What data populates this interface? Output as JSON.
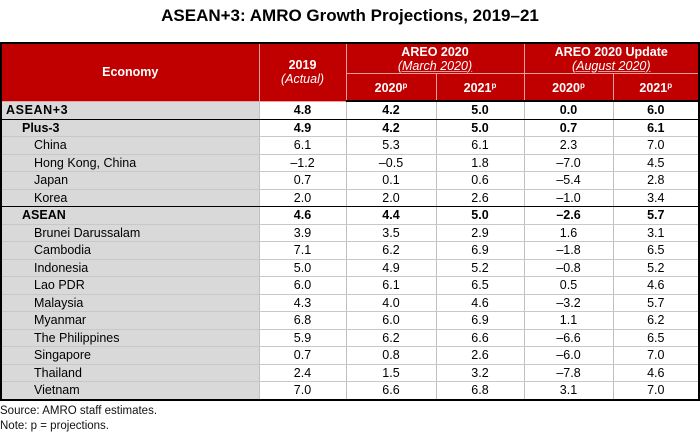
{
  "title": "ASEAN+3: AMRO Growth Projections, 2019–21",
  "header": {
    "economy": "Economy",
    "actual_year": "2019",
    "actual_sub": "(Actual)",
    "areo_title": "AREO 2020",
    "areo_sub": "(March 2020)",
    "update_title": "AREO 2020 Update",
    "update_sub": "(August 2020)",
    "y2020": "2020",
    "y2021": "2021",
    "proj_marker": "p"
  },
  "rows": [
    {
      "name": "ASEAN+3",
      "level": 0,
      "values": [
        "4.8",
        "4.2",
        "5.0",
        "0.0",
        "6.0"
      ]
    },
    {
      "name": "Plus-3",
      "level": 1,
      "values": [
        "4.9",
        "4.2",
        "5.0",
        "0.7",
        "6.1"
      ]
    },
    {
      "name": "China",
      "level": 2,
      "values": [
        "6.1",
        "5.3",
        "6.1",
        "2.3",
        "7.0"
      ]
    },
    {
      "name": "Hong Kong, China",
      "level": 2,
      "values": [
        "–1.2",
        "–0.5",
        "1.8",
        "–7.0",
        "4.5"
      ]
    },
    {
      "name": "Japan",
      "level": 2,
      "values": [
        "0.7",
        "0.1",
        "0.6",
        "–5.4",
        "2.8"
      ]
    },
    {
      "name": "Korea",
      "level": 2,
      "values": [
        "2.0",
        "2.0",
        "2.6",
        "–1.0",
        "3.4"
      ]
    },
    {
      "name": "ASEAN",
      "level": 1,
      "values": [
        "4.6",
        "4.4",
        "5.0",
        "–2.6",
        "5.7"
      ]
    },
    {
      "name": "Brunei Darussalam",
      "level": 2,
      "values": [
        "3.9",
        "3.5",
        "2.9",
        "1.6",
        "3.1"
      ]
    },
    {
      "name": "Cambodia",
      "level": 2,
      "values": [
        "7.1",
        "6.2",
        "6.9",
        "–1.8",
        "6.5"
      ]
    },
    {
      "name": "Indonesia",
      "level": 2,
      "values": [
        "5.0",
        "4.9",
        "5.2",
        "–0.8",
        "5.2"
      ]
    },
    {
      "name": "Lao PDR",
      "level": 2,
      "values": [
        "6.0",
        "6.1",
        "6.5",
        "0.5",
        "4.6"
      ]
    },
    {
      "name": "Malaysia",
      "level": 2,
      "values": [
        "4.3",
        "4.0",
        "4.6",
        "–3.2",
        "5.7"
      ]
    },
    {
      "name": "Myanmar",
      "level": 2,
      "values": [
        "6.8",
        "6.0",
        "6.9",
        "1.1",
        "6.2"
      ]
    },
    {
      "name": "The Philippines",
      "level": 2,
      "values": [
        "5.9",
        "6.2",
        "6.6",
        "–6.6",
        "6.5"
      ]
    },
    {
      "name": "Singapore",
      "level": 2,
      "values": [
        "0.7",
        "0.8",
        "2.6",
        "–6.0",
        "7.0"
      ]
    },
    {
      "name": "Thailand",
      "level": 2,
      "values": [
        "2.4",
        "1.5",
        "3.2",
        "–7.8",
        "4.6"
      ]
    },
    {
      "name": "Vietnam",
      "level": 2,
      "values": [
        "7.0",
        "6.6",
        "6.8",
        "3.1",
        "7.0"
      ]
    }
  ],
  "notes": {
    "source": "Source: AMRO staff estimates.",
    "note": "Note: p = projections."
  }
}
